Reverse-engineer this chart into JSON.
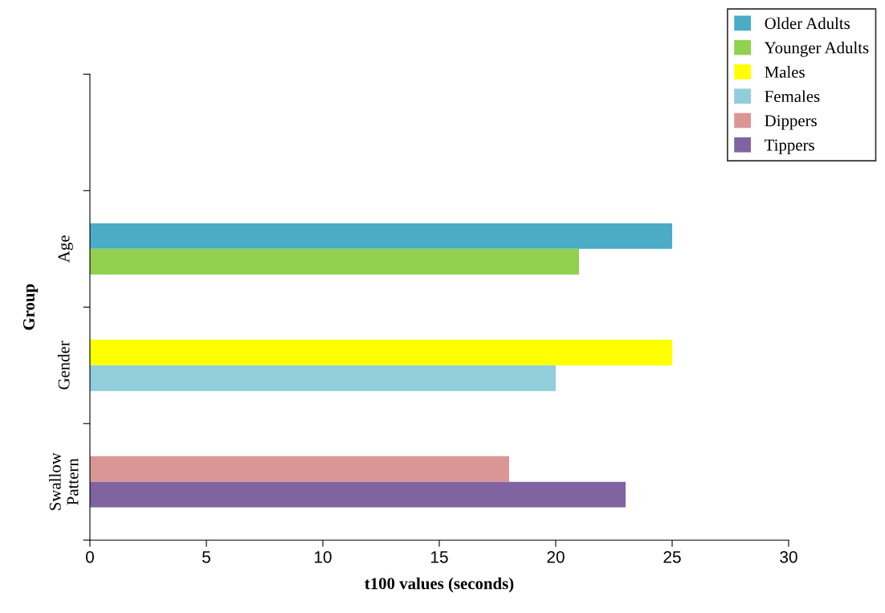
{
  "chart_data": {
    "type": "bar",
    "orientation": "horizontal",
    "xlabel": "t100 values (seconds)",
    "ylabel": "Group",
    "categories": [
      null,
      "Age",
      "Gender",
      "Swallow\nPattern"
    ],
    "series": [
      {
        "name": "Older Adults",
        "color": "#4bacc6",
        "values": [
          null,
          25,
          null,
          null
        ]
      },
      {
        "name": "Younger Adults",
        "color": "#92d050",
        "values": [
          null,
          21,
          null,
          null
        ]
      },
      {
        "name": "Males",
        "color": "#ffff00",
        "values": [
          null,
          null,
          25,
          null
        ]
      },
      {
        "name": "Females",
        "color": "#92cddc",
        "values": [
          null,
          null,
          20,
          null
        ]
      },
      {
        "name": "Dippers",
        "color": "#da9694",
        "values": [
          null,
          null,
          null,
          18
        ]
      },
      {
        "name": "Tippers",
        "color": "#8064a2",
        "values": [
          null,
          null,
          null,
          23
        ]
      }
    ],
    "xlim": [
      0,
      30
    ],
    "xticks": [
      0,
      5,
      10,
      15,
      20,
      25,
      30
    ],
    "grid": false,
    "legend": "top right"
  }
}
